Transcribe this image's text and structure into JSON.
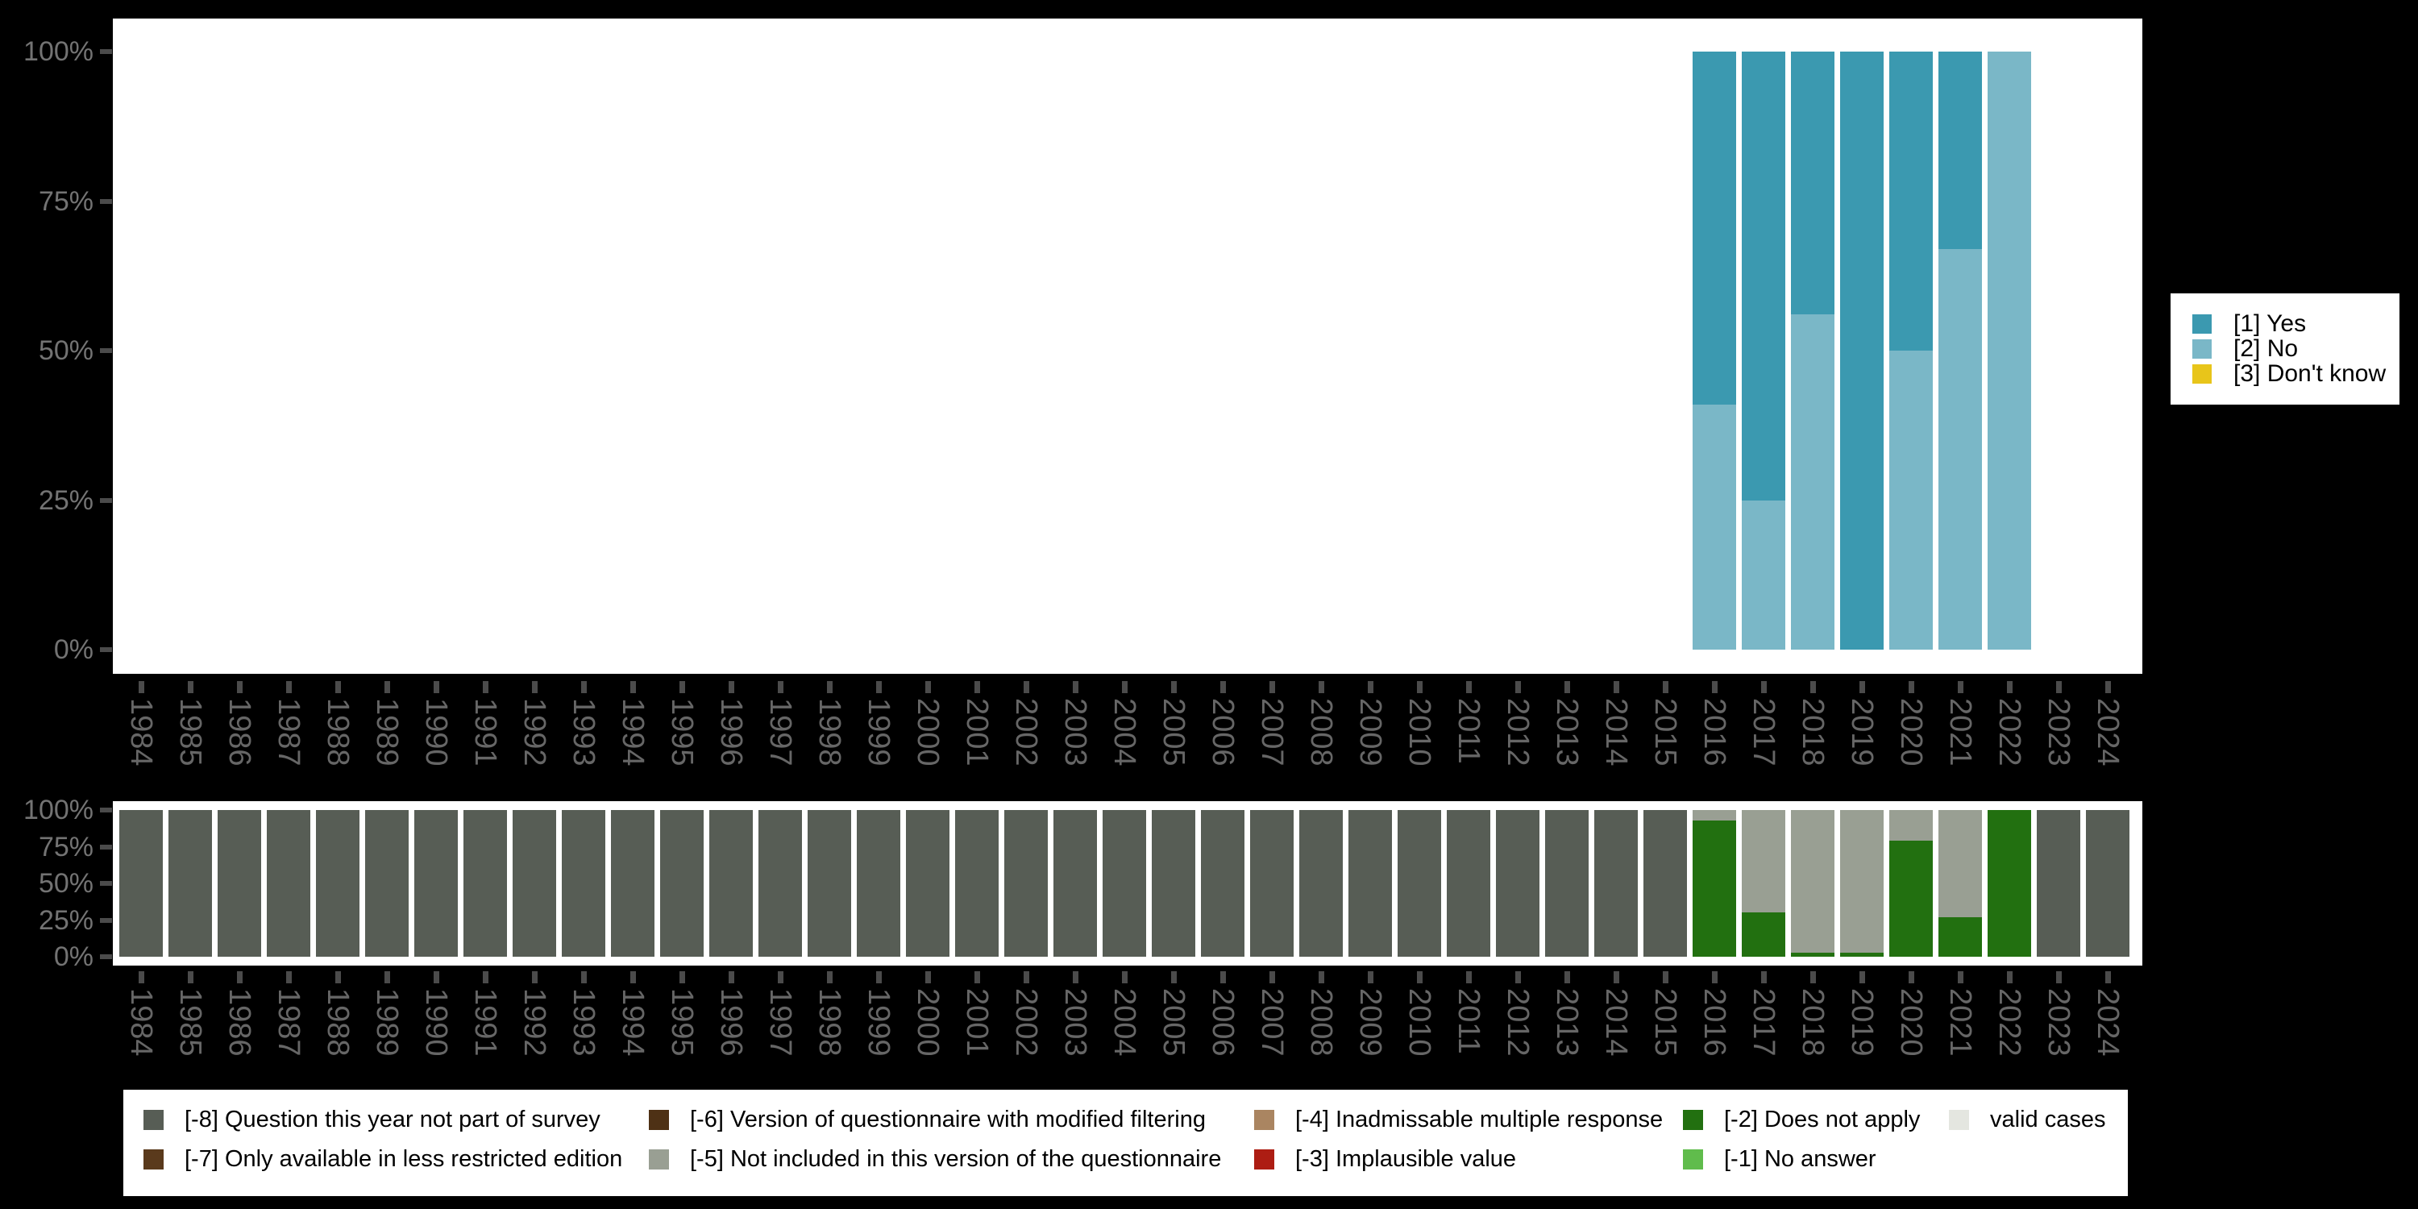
{
  "colors": {
    "background": "#000000",
    "panel": "#ffffff",
    "axis_label_text": "#737373",
    "year_label_text": "#666666",
    "tick": "#4b4b4b",
    "legend_text": "#000000"
  },
  "y_axis": {
    "tick_percents": [
      0,
      25,
      50,
      75,
      100
    ],
    "tick_labels": [
      "0%",
      "25%",
      "50%",
      "75%",
      "100%"
    ]
  },
  "years": [
    "1984",
    "1985",
    "1986",
    "1987",
    "1988",
    "1989",
    "1990",
    "1991",
    "1992",
    "1993",
    "1994",
    "1995",
    "1996",
    "1997",
    "1998",
    "1999",
    "2000",
    "2001",
    "2002",
    "2003",
    "2004",
    "2005",
    "2006",
    "2007",
    "2008",
    "2009",
    "2010",
    "2011",
    "2012",
    "2013",
    "2014",
    "2015",
    "2016",
    "2017",
    "2018",
    "2019",
    "2020",
    "2021",
    "2022",
    "2023",
    "2024"
  ],
  "chart_data": [
    {
      "type": "bar",
      "stacked": true,
      "name": "answers-by-year",
      "title": "",
      "xlabel": "",
      "ylabel": "",
      "ylim": [
        0,
        100
      ],
      "grid": false,
      "y_tick_labels": [
        "0%",
        "25%",
        "50%",
        "75%",
        "100%"
      ],
      "series": [
        {
          "id": "yes",
          "label": "[1] Yes",
          "color": "#3b99b0",
          "values": {
            "2016": 59,
            "2017": 75,
            "2018": 44,
            "2019": 100,
            "2020": 50,
            "2021": 33,
            "2022": 0
          }
        },
        {
          "id": "no",
          "label": "[2] No",
          "color": "#7ab7c7",
          "values": {
            "2016": 41,
            "2017": 25,
            "2018": 56,
            "2019": 0,
            "2020": 50,
            "2021": 67,
            "2022": 100
          }
        },
        {
          "id": "dk",
          "label": "[3] Don't know",
          "color": "#e8c51a",
          "values": {
            "2016": 0,
            "2017": 0,
            "2018": 0,
            "2019": 0,
            "2020": 0,
            "2021": 0,
            "2022": 0
          }
        }
      ]
    },
    {
      "type": "bar",
      "stacked": true,
      "name": "missings-by-year",
      "title": "",
      "xlabel": "",
      "ylabel": "",
      "ylim": [
        0,
        100
      ],
      "grid": false,
      "y_tick_labels": [
        "0%",
        "25%",
        "50%",
        "75%",
        "100%"
      ],
      "series": [
        {
          "id": "m8",
          "label": "[-8] Question this year not part of survey",
          "color": "#575d55",
          "values": {},
          "ranges_at_100": [
            [
              "1984",
              "2015"
            ],
            [
              "2023",
              "2024"
            ]
          ]
        },
        {
          "id": "m7",
          "label": "[-7] Only available in less restricted edition",
          "color": "#5a3a1c",
          "values": {}
        },
        {
          "id": "m6",
          "label": "[-6] Version of questionnaire with modified filtering",
          "color": "#4e3115",
          "values": {}
        },
        {
          "id": "m5",
          "label": "[-5] Not included in this version of the questionnaire",
          "color": "#999f93",
          "values": {
            "2016": 7,
            "2017": 70,
            "2018": 97,
            "2019": 97,
            "2020": 21,
            "2021": 73,
            "2022": 0
          }
        },
        {
          "id": "m4",
          "label": "[-4] Inadmissable multiple response",
          "color": "#aa8561",
          "values": {}
        },
        {
          "id": "m3",
          "label": "[-3] Implausible value",
          "color": "#ad1d13",
          "values": {}
        },
        {
          "id": "m2",
          "label": "[-2] Does not apply",
          "color": "#227010",
          "values": {
            "2016": 93,
            "2017": 30,
            "2018": 3,
            "2019": 3,
            "2020": 79,
            "2021": 27,
            "2022": 100
          }
        },
        {
          "id": "m1",
          "label": "[-1] No answer",
          "color": "#60bc4c",
          "values": {}
        },
        {
          "id": "valid",
          "label": "valid cases",
          "color": "#e4e6e0",
          "values": {}
        }
      ]
    }
  ],
  "legend_answers": {
    "items": [
      "yes",
      "no",
      "dk"
    ]
  },
  "legend_missings": {
    "rows": [
      [
        "m8",
        "m6",
        "m4",
        "m2",
        "valid"
      ],
      [
        "m7",
        "m5",
        "m3",
        "m1"
      ]
    ]
  }
}
